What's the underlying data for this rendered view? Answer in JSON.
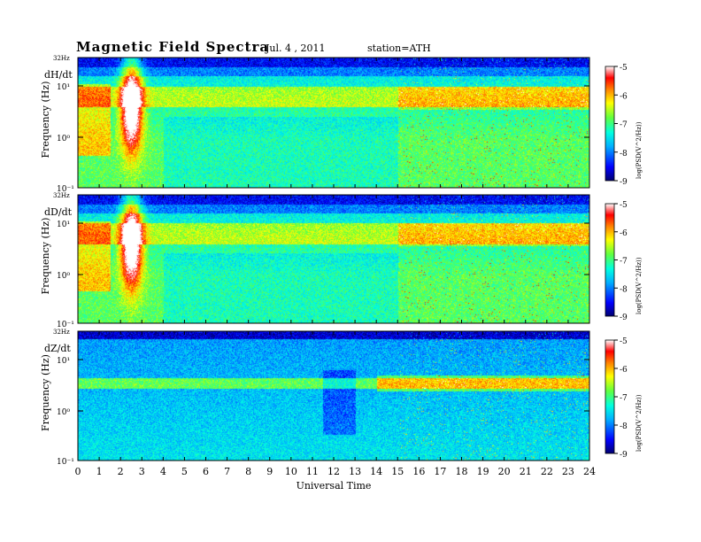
{
  "header": {
    "title": "Magnetic  Field  Spectra",
    "date": "Jul.  4  , 2011",
    "station": "station=ATH"
  },
  "colorbar": {
    "label": "log(PSD(V^2/Hz))",
    "ticks": [
      "-5",
      "-6",
      "-7",
      "-8",
      "-9"
    ],
    "colormap": [
      "#000080",
      "#0000ff",
      "#00a0ff",
      "#00ffff",
      "#40ff80",
      "#a0ff20",
      "#ffff00",
      "#ff8000",
      "#ff0000",
      "#ffffff"
    ]
  },
  "chart_data": [
    {
      "type": "heatmap",
      "title": "dH/dt",
      "ylabel": "Frequency  (Hz)",
      "xlabel": "",
      "top_label": "32Hz",
      "y_ticks": [
        "10¹",
        "10⁰",
        "10⁻¹"
      ],
      "xlim": [
        0,
        24
      ],
      "colorbar_range": [
        -9,
        -5
      ]
    },
    {
      "type": "heatmap",
      "title": "dD/dt",
      "ylabel": "Frequency  (Hz)",
      "xlabel": "",
      "top_label": "32Hz",
      "y_ticks": [
        "10¹",
        "10⁰",
        "10⁻¹"
      ],
      "xlim": [
        0,
        24
      ],
      "colorbar_range": [
        -9,
        -5
      ]
    },
    {
      "type": "heatmap",
      "title": "dZ/dt",
      "ylabel": "Frequency  (Hz)",
      "xlabel": "Universal Time",
      "top_label": "32Hz",
      "y_ticks": [
        "10¹",
        "10⁰",
        "10⁻¹"
      ],
      "xlim": [
        0,
        24
      ],
      "x_ticks": [
        "0",
        "1",
        "2",
        "3",
        "4",
        "5",
        "6",
        "7",
        "8",
        "9",
        "10",
        "11",
        "12",
        "13",
        "14",
        "15",
        "16",
        "17",
        "18",
        "19",
        "20",
        "21",
        "22",
        "23",
        "24"
      ],
      "colorbar_range": [
        -9,
        -5
      ]
    }
  ]
}
